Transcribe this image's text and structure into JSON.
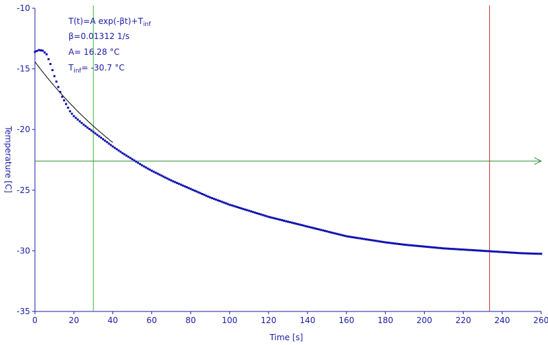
{
  "chart_data": {
    "type": "scatter",
    "xlabel": "Time [s]",
    "ylabel": "Temperature [C]",
    "xlim": [
      0,
      260
    ],
    "ylim": [
      -35,
      -10
    ],
    "x_ticks": [
      0,
      20,
      40,
      60,
      80,
      100,
      120,
      140,
      160,
      180,
      200,
      220,
      240,
      260
    ],
    "y_ticks": [
      -10,
      -15,
      -20,
      -25,
      -30,
      -35
    ],
    "grid": false,
    "colors": {
      "axis": "#1a1aa6",
      "data": "#1010b0",
      "fit": "#000000",
      "cursor_x": "#33bb33",
      "cursor_y": "#2e8b2e",
      "cursor_x2": "#cc2222"
    },
    "annotations": {
      "formula_main": "T(t)=A exp(-βt)+T",
      "formula_sub": "inf",
      "beta": "β=0.01312 1/s",
      "amp": "A= 16.28 °C",
      "tinf_main": "T",
      "tinf_sub": "inf",
      "tinf_val": "= -30.7 °C"
    },
    "cursors": {
      "x_green": 30,
      "x_red": 233.5,
      "y_green": -22.6
    },
    "fit": {
      "A": 16.28,
      "beta": 0.01312,
      "T_inf": -30.7,
      "x_range": [
        0,
        40
      ]
    },
    "series": [
      {
        "x": [
          0,
          2,
          4,
          6,
          8,
          10,
          12,
          14,
          16,
          18,
          20,
          25,
          30,
          35,
          40,
          45,
          50,
          55,
          60,
          70,
          80,
          90,
          100,
          110,
          120,
          130,
          140,
          150,
          160,
          170,
          180,
          190,
          200,
          210,
          220,
          230,
          240,
          250,
          260
        ],
        "y": [
          -13.6,
          -13.45,
          -13.5,
          -13.8,
          -14.6,
          -15.6,
          -16.5,
          -17.3,
          -17.9,
          -18.5,
          -18.9,
          -19.6,
          -20.2,
          -20.8,
          -21.4,
          -21.95,
          -22.45,
          -22.95,
          -23.4,
          -24.2,
          -24.9,
          -25.6,
          -26.2,
          -26.7,
          -27.2,
          -27.6,
          -28.0,
          -28.4,
          -28.8,
          -29.05,
          -29.3,
          -29.5,
          -29.65,
          -29.8,
          -29.9,
          -30.0,
          -30.1,
          -30.2,
          -30.25
        ]
      }
    ]
  }
}
